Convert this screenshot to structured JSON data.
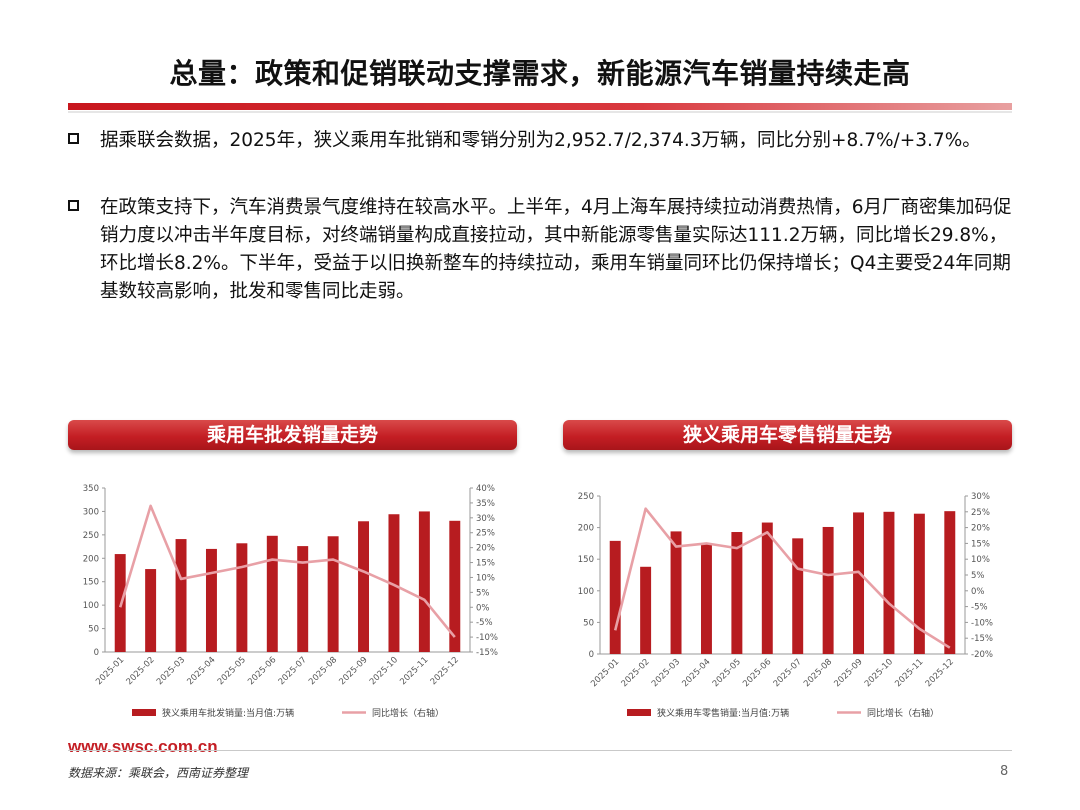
{
  "title": "总量：政策和促销联动支撑需求，新能源汽车销量持续走高",
  "bullets": [
    "据乘联会数据，2025年，狭义乘用车批销和零销分别为2,952.7/2,374.3万辆，同比分别+8.7%/+3.7%。",
    "在政策支持下，汽车消费景气度维持在较高水平。上半年，4月上海车展持续拉动消费热情，6月厂商密集加码促销力度以冲击半年度目标，对终端销量构成直接拉动，其中新能源零售量实际达111.2万辆，同比增长29.8%，环比增长8.2%。下半年，受益于以旧换新整车的持续拉动，乘用车销量同环比仍保持增长；Q4主要受24年同期基数较高影响，批发和零售同比走弱。"
  ],
  "colors": {
    "bar": "#b71c20",
    "line": "#e8a0a6",
    "accent": "#c41e24"
  },
  "chart_data": [
    {
      "type": "bar",
      "title": "乘用车批发销量走势",
      "categories": [
        "2025-01",
        "2025-02",
        "2025-03",
        "2025-04",
        "2025-05",
        "2025-06",
        "2025-07",
        "2025-08",
        "2025-09",
        "2025-10",
        "2025-11",
        "2025-12"
      ],
      "series": [
        {
          "name": "狭义乘用车批发销量:当月值:万辆",
          "kind": "bar",
          "axis": "left",
          "values": [
            209,
            177,
            241,
            220,
            232,
            248,
            226,
            247,
            279,
            294,
            300,
            280
          ]
        },
        {
          "name": "同比增长（右轴）",
          "kind": "line",
          "axis": "right",
          "values": [
            0,
            34,
            9.5,
            11.5,
            13.5,
            16,
            15,
            16,
            12,
            7.5,
            2.5,
            -10
          ]
        }
      ],
      "ylim": [
        0,
        350
      ],
      "yticks": [
        "0",
        "50",
        "100",
        "150",
        "200",
        "250",
        "300",
        "350"
      ],
      "y2lim": [
        -15,
        40
      ],
      "y2ticks": [
        "-15%",
        "-10%",
        "-5%",
        "0%",
        "5%",
        "10%",
        "15%",
        "20%",
        "25%",
        "30%",
        "35%",
        "40%"
      ],
      "legend": "bottom"
    },
    {
      "type": "bar",
      "title": "狭义乘用车零售销量走势",
      "categories": [
        "2025-01",
        "2025-02",
        "2025-03",
        "2025-04",
        "2025-05",
        "2025-06",
        "2025-07",
        "2025-08",
        "2025-09",
        "2025-10",
        "2025-11",
        "2025-12"
      ],
      "series": [
        {
          "name": "狭义乘用车零售销量:当月值:万辆",
          "kind": "bar",
          "axis": "left",
          "values": [
            179,
            138,
            194,
            175,
            193,
            208,
            183,
            201,
            224,
            225,
            222,
            226
          ]
        },
        {
          "name": "同比增长（右轴）",
          "kind": "line",
          "axis": "right",
          "values": [
            -12.5,
            26,
            14,
            15,
            13.5,
            18.5,
            7,
            5,
            6,
            -4,
            -12,
            -18
          ]
        }
      ],
      "ylim": [
        0,
        250
      ],
      "yticks": [
        "0",
        "50",
        "100",
        "150",
        "200",
        "250"
      ],
      "y2lim": [
        -20,
        30
      ],
      "y2ticks": [
        "-20%",
        "-15%",
        "-10%",
        "-5%",
        "0%",
        "5%",
        "10%",
        "15%",
        "20%",
        "25%",
        "30%"
      ],
      "legend": "bottom"
    }
  ],
  "footer": {
    "url": "www.swsc.com.cn",
    "source": "数据来源：乘联会，西南证券整理",
    "page": "8"
  }
}
